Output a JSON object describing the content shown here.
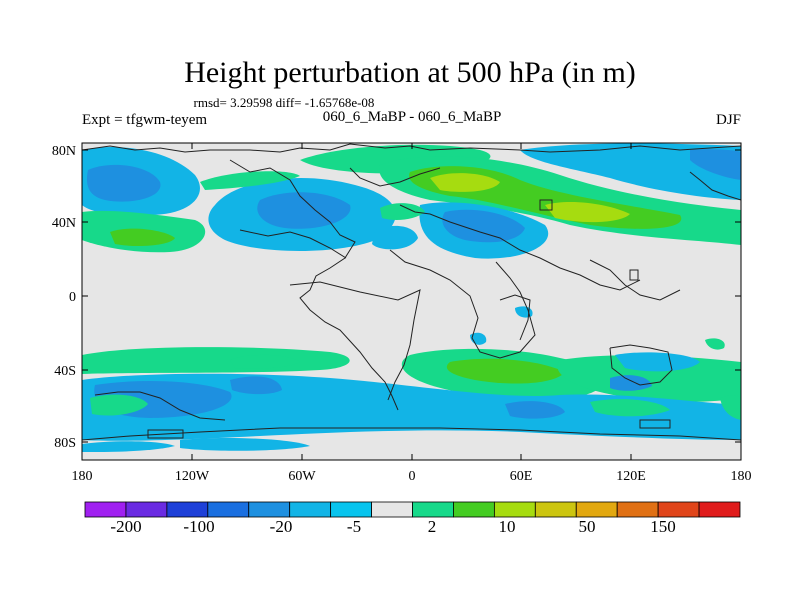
{
  "title": "Height perturbation at 500 hPa (in m)",
  "stats_line": "rmsd= 3.29598 diff= -1.65768e-08",
  "expt_label": "Expt = tfgwm-teyem",
  "run_label": "060_6_MaBP - 060_6_MaBP",
  "season": "DJF",
  "lat_ticks": [
    "80N",
    "40N",
    "0",
    "40S",
    "80S"
  ],
  "lon_ticks": [
    "180",
    "120W",
    "60W",
    "0",
    "60E",
    "120E",
    "180"
  ],
  "colorbar_labels": [
    "-200",
    "-100",
    "-20",
    "-5",
    "2",
    "10",
    "50",
    "150"
  ],
  "colorbar_colors": [
    "#a020f0",
    "#6a2be2",
    "#1e40d8",
    "#1a6fe0",
    "#1e90e0",
    "#12b4e6",
    "#08c4ee",
    "#e6e6e6",
    "#17d98a",
    "#44cc22",
    "#a6dc10",
    "#ccc510",
    "#e2a810",
    "#e07014",
    "#e0451a",
    "#e01c1c"
  ],
  "field_colors": {
    "land": "#e6e6e6",
    "neg_weak": "#12b4e6",
    "neg_strong": "#1e90e0",
    "pos_weak": "#17d98a",
    "pos_mid": "#44cc22",
    "pos_strong": "#a6dc10"
  }
}
